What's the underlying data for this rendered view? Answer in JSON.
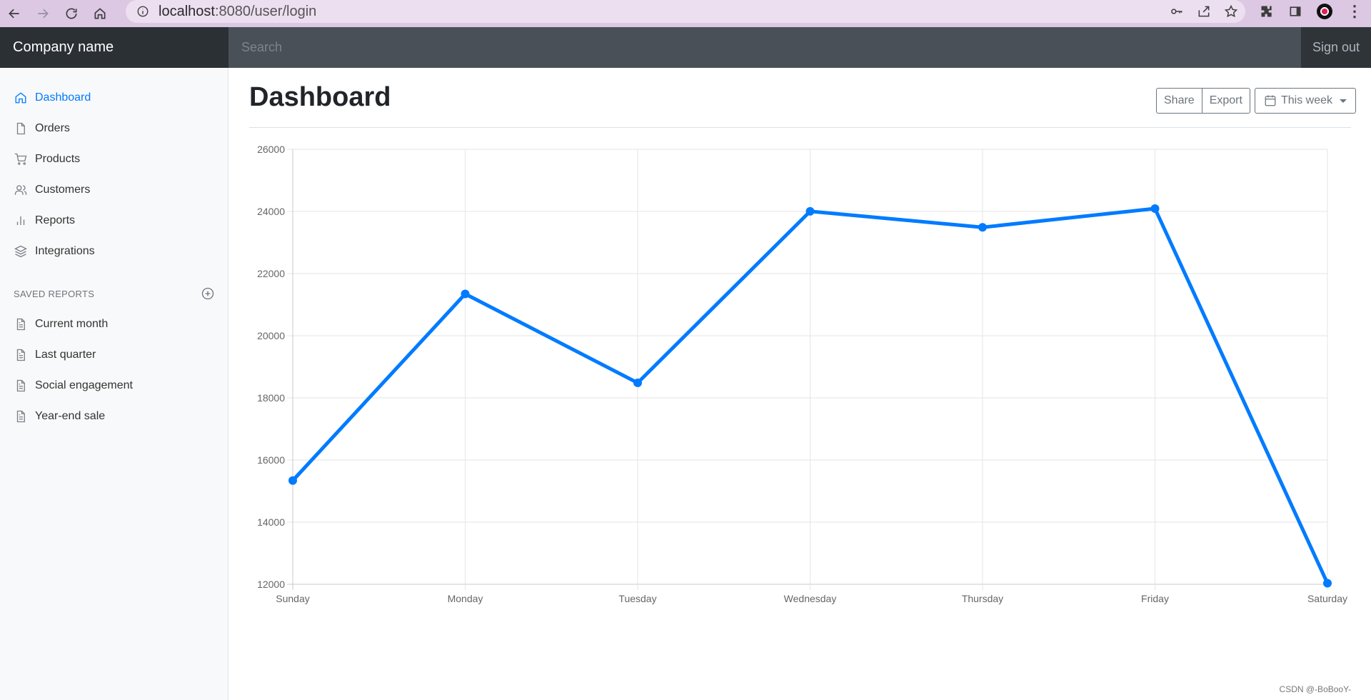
{
  "browser": {
    "url_host": "localhost",
    "url_rest": ":8080/user/login"
  },
  "navbar": {
    "brand": "Company name",
    "search_placeholder": "Search",
    "signout": "Sign out"
  },
  "sidebar": {
    "items": [
      {
        "label": "Dashboard",
        "icon": "home-icon",
        "active": true
      },
      {
        "label": "Orders",
        "icon": "file-icon"
      },
      {
        "label": "Products",
        "icon": "shopping-cart-icon"
      },
      {
        "label": "Customers",
        "icon": "users-icon"
      },
      {
        "label": "Reports",
        "icon": "bar-chart-icon"
      },
      {
        "label": "Integrations",
        "icon": "layers-icon"
      }
    ],
    "saved_heading": "SAVED REPORTS",
    "saved_items": [
      {
        "label": "Current month",
        "icon": "file-text-icon"
      },
      {
        "label": "Last quarter",
        "icon": "file-text-icon"
      },
      {
        "label": "Social engagement",
        "icon": "file-text-icon"
      },
      {
        "label": "Year-end sale",
        "icon": "file-text-icon"
      }
    ]
  },
  "main": {
    "title": "Dashboard",
    "share": "Share",
    "export": "Export",
    "range": "This week"
  },
  "chart_data": {
    "type": "line",
    "categories": [
      "Sunday",
      "Monday",
      "Tuesday",
      "Wednesday",
      "Thursday",
      "Friday",
      "Saturday"
    ],
    "values": [
      15339,
      21345,
      18483,
      24003,
      23489,
      24092,
      12034
    ],
    "ylim": [
      12000,
      26000
    ],
    "yticks": [
      12000,
      14000,
      16000,
      18000,
      20000,
      22000,
      24000,
      26000
    ],
    "line_color": "#007bff",
    "grid": true,
    "legend": false
  },
  "watermark": "CSDN @-BoBooY-"
}
